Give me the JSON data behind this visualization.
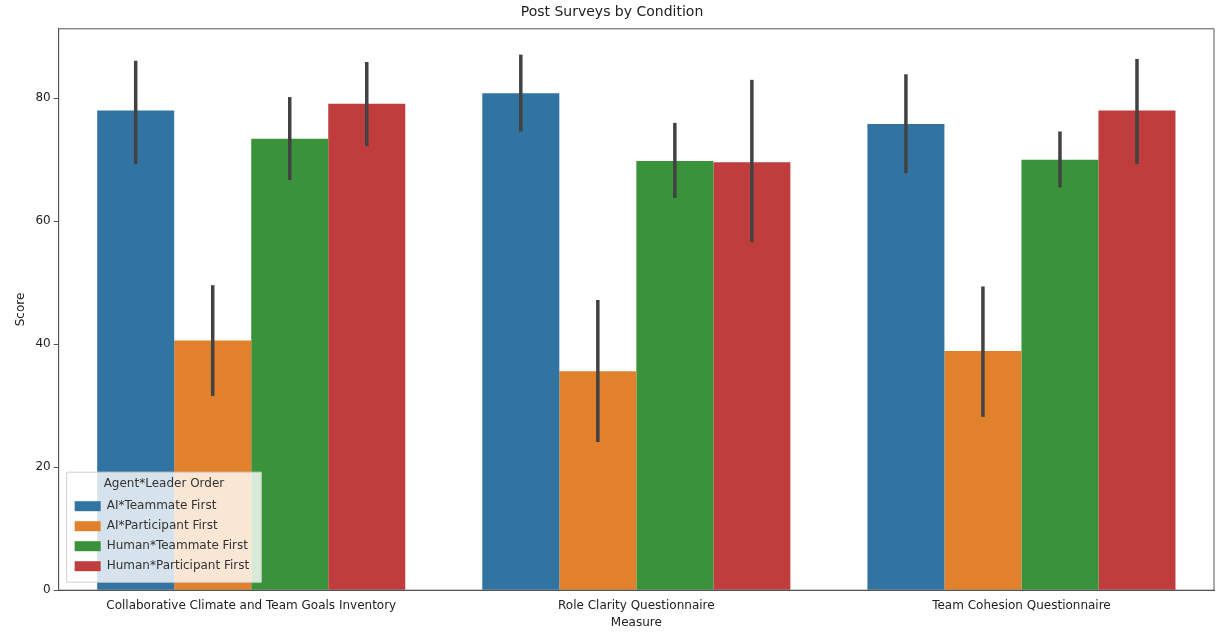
{
  "chart_data": {
    "type": "bar",
    "title": "Post Surveys by Condition",
    "xlabel": "Measure",
    "ylabel": "Score",
    "legend_title": "Agent*Leader Order",
    "legend": "bottom left",
    "grid": false,
    "categories": [
      "Collaborative Climate and Team Goals Inventory",
      "Role Clarity Questionnaire",
      "Team Cohesion Questionnaire"
    ],
    "ylim": [
      0,
      91.3
    ],
    "yticks": [
      0,
      20,
      40,
      60,
      80
    ],
    "series": [
      {
        "name": "AI*Teammate First",
        "color": "#3274a1",
        "values": [
          78.0,
          80.8,
          75.8
        ],
        "errors": [
          [
            69.3,
            86.1
          ],
          [
            74.6,
            87.1
          ],
          [
            67.8,
            83.9
          ]
        ]
      },
      {
        "name": "AI*Participant First",
        "color": "#e1812c",
        "values": [
          40.6,
          35.6,
          38.9
        ],
        "errors": [
          [
            31.6,
            49.6
          ],
          [
            24.1,
            47.2
          ],
          [
            28.2,
            49.4
          ]
        ]
      },
      {
        "name": "Human*Teammate First",
        "color": "#3a923a",
        "values": [
          73.4,
          69.8,
          70.0
        ],
        "errors": [
          [
            66.7,
            80.2
          ],
          [
            63.8,
            76.0
          ],
          [
            65.5,
            74.6
          ]
        ]
      },
      {
        "name": "Human*Participant First",
        "color": "#c03d3e",
        "values": [
          79.1,
          69.6,
          78.0
        ],
        "errors": [
          [
            72.2,
            85.9
          ],
          [
            56.6,
            83.0
          ],
          [
            69.3,
            86.4
          ]
        ]
      }
    ]
  }
}
